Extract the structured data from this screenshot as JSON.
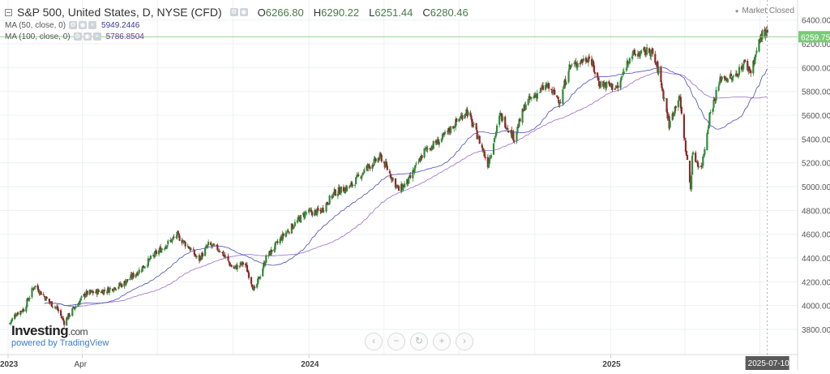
{
  "header": {
    "title": "S&P 500, United States, D, NYSE (CFD)",
    "ohlc": [
      {
        "label": "O",
        "value": "6266.80"
      },
      {
        "label": "H",
        "value": "6290.22"
      },
      {
        "label": "L",
        "value": "6251.44"
      },
      {
        "label": "C",
        "value": "6280.46"
      }
    ],
    "indicators": [
      {
        "label": "MA (50, close, 0)",
        "value": "5949.2446",
        "color": "#3a3aa0"
      },
      {
        "label": "MA (100, close, 0)",
        "value": "5786.8504",
        "color": "#6a3a9a"
      }
    ],
    "market_status": "Market Closed"
  },
  "branding": {
    "logo_text": "Investing",
    "logo_suffix": ".com",
    "powered_by": "powered by TradingView"
  },
  "nav": {
    "buttons": [
      {
        "name": "scroll-left-button",
        "glyph": "‹"
      },
      {
        "name": "zoom-out-button",
        "glyph": "−"
      },
      {
        "name": "reset-button",
        "glyph": "↻"
      },
      {
        "name": "zoom-in-button",
        "glyph": "+"
      },
      {
        "name": "scroll-right-button",
        "glyph": "›"
      }
    ]
  },
  "colors": {
    "up": "#2e8b3a",
    "down": "#8b2a2a",
    "ma50": "#4a4ab8",
    "ma100": "#9a6ad0",
    "price_line": "#8fd48f",
    "price_label_bg": "#7ac97a",
    "date_label_bg": "#5a5a5a"
  },
  "chart_data": {
    "type": "candlestick",
    "title": "S&P 500, United States, D, NYSE (CFD)",
    "y_axis": {
      "range": [
        3650,
        6480
      ],
      "ticks": [
        3800,
        4000,
        4200,
        4400,
        4600,
        4800,
        5000,
        5200,
        5400,
        5600,
        5800,
        6000,
        6200,
        6400
      ],
      "tick_labels": [
        "3800.00",
        "4000.00",
        "4200.00",
        "4400.00",
        "4600.00",
        "4800.00",
        "5000.00",
        "5200.00",
        "5400.00",
        "5600.00",
        "5800.00",
        "6000.00",
        "6200.00",
        "6400.00"
      ],
      "position": "right"
    },
    "x_axis": {
      "range": [
        "2023-01-01",
        "2025-07-31"
      ],
      "ticks": [
        {
          "date": "2023-01-01",
          "label": "2023"
        },
        {
          "date": "2023-04-01",
          "label": "Apr"
        },
        {
          "date": "2024-01-01",
          "label": "2024"
        },
        {
          "date": "2025-01-01",
          "label": "2025"
        }
      ],
      "gridlines": [
        "2023-01-01",
        "2023-04-01",
        "2023-07-01",
        "2023-10-01",
        "2024-01-01",
        "2024-04-01",
        "2024-07-01",
        "2024-10-01",
        "2025-01-01",
        "2025-04-01",
        "2025-07-01"
      ]
    },
    "grid": true,
    "current_price": {
      "value": 6259.75,
      "label": "6259.75"
    },
    "current_date": {
      "date": "2025-07-10",
      "label": "2025-07-10"
    },
    "close_path": [
      {
        "date": "2023-01-03",
        "value": 3850
      },
      {
        "date": "2023-01-10",
        "value": 3930
      },
      {
        "date": "2023-01-20",
        "value": 3970
      },
      {
        "date": "2023-02-02",
        "value": 4170
      },
      {
        "date": "2023-02-20",
        "value": 4030
      },
      {
        "date": "2023-03-01",
        "value": 3980
      },
      {
        "date": "2023-03-10",
        "value": 3860
      },
      {
        "date": "2023-03-20",
        "value": 3960
      },
      {
        "date": "2023-04-05",
        "value": 4100
      },
      {
        "date": "2023-05-01",
        "value": 4130
      },
      {
        "date": "2023-05-20",
        "value": 4180
      },
      {
        "date": "2023-06-10",
        "value": 4300
      },
      {
        "date": "2023-07-01",
        "value": 4450
      },
      {
        "date": "2023-07-25",
        "value": 4590
      },
      {
        "date": "2023-08-10",
        "value": 4480
      },
      {
        "date": "2023-08-20",
        "value": 4380
      },
      {
        "date": "2023-09-01",
        "value": 4510
      },
      {
        "date": "2023-09-15",
        "value": 4470
      },
      {
        "date": "2023-10-01",
        "value": 4310
      },
      {
        "date": "2023-10-15",
        "value": 4360
      },
      {
        "date": "2023-10-27",
        "value": 4120
      },
      {
        "date": "2023-11-10",
        "value": 4400
      },
      {
        "date": "2023-12-01",
        "value": 4590
      },
      {
        "date": "2023-12-28",
        "value": 4780
      },
      {
        "date": "2024-01-15",
        "value": 4790
      },
      {
        "date": "2024-02-01",
        "value": 4950
      },
      {
        "date": "2024-02-20",
        "value": 5000
      },
      {
        "date": "2024-03-10",
        "value": 5150
      },
      {
        "date": "2024-03-28",
        "value": 5250
      },
      {
        "date": "2024-04-19",
        "value": 4970
      },
      {
        "date": "2024-05-01",
        "value": 5050
      },
      {
        "date": "2024-05-20",
        "value": 5300
      },
      {
        "date": "2024-06-10",
        "value": 5400
      },
      {
        "date": "2024-07-10",
        "value": 5640
      },
      {
        "date": "2024-07-25",
        "value": 5400
      },
      {
        "date": "2024-08-05",
        "value": 5190
      },
      {
        "date": "2024-08-20",
        "value": 5600
      },
      {
        "date": "2024-09-06",
        "value": 5410
      },
      {
        "date": "2024-09-20",
        "value": 5700
      },
      {
        "date": "2024-10-15",
        "value": 5850
      },
      {
        "date": "2024-11-01",
        "value": 5720
      },
      {
        "date": "2024-11-11",
        "value": 6000
      },
      {
        "date": "2024-12-06",
        "value": 6090
      },
      {
        "date": "2024-12-18",
        "value": 5870
      },
      {
        "date": "2025-01-10",
        "value": 5830
      },
      {
        "date": "2025-01-24",
        "value": 6100
      },
      {
        "date": "2025-02-19",
        "value": 6140
      },
      {
        "date": "2025-03-01",
        "value": 5950
      },
      {
        "date": "2025-03-13",
        "value": 5520
      },
      {
        "date": "2025-03-25",
        "value": 5770
      },
      {
        "date": "2025-04-08",
        "value": 4980
      },
      {
        "date": "2025-04-10",
        "value": 5270
      },
      {
        "date": "2025-04-21",
        "value": 5150
      },
      {
        "date": "2025-05-01",
        "value": 5600
      },
      {
        "date": "2025-05-15",
        "value": 5920
      },
      {
        "date": "2025-05-30",
        "value": 5910
      },
      {
        "date": "2025-06-12",
        "value": 6040
      },
      {
        "date": "2025-06-20",
        "value": 5970
      },
      {
        "date": "2025-07-03",
        "value": 6280
      },
      {
        "date": "2025-07-10",
        "value": 6280
      }
    ],
    "series": [
      {
        "name": "MA (50, close, 0)",
        "last_value": 5949.2446
      },
      {
        "name": "MA (100, close, 0)",
        "last_value": 5786.8504
      }
    ]
  }
}
